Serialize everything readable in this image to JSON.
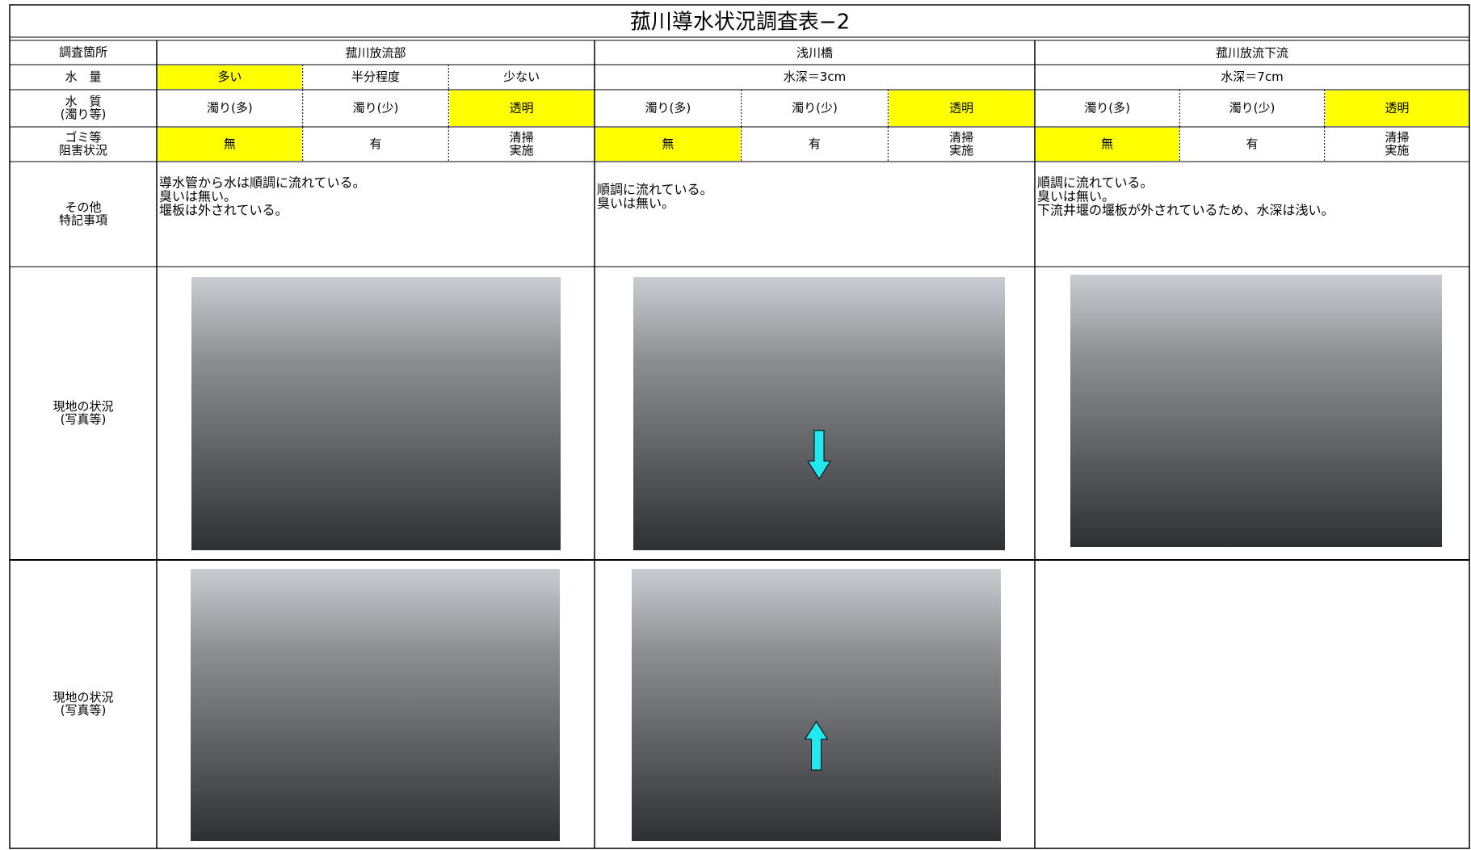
{
  "title": "菰川導水状況調査表−2",
  "highlight_color": "#ffff00",
  "row_labels": {
    "location": [
      "調査箇所"
    ],
    "water_amount": [
      "水　量"
    ],
    "water_quality": [
      "水　質",
      "(濁り等)"
    ],
    "obstruction": [
      "ゴミ等",
      "阻害状況"
    ],
    "notes": [
      "その他",
      "特記事項"
    ],
    "photos": [
      [
        "現地の状況",
        "(写真等)"
      ],
      [
        "現地の状況",
        "(写真等)"
      ]
    ]
  },
  "sites": [
    {
      "name": "菰川放流部",
      "water_amount": [
        {
          "text": [
            "多い"
          ],
          "highlight": true
        },
        {
          "text": [
            "半分程度"
          ]
        },
        {
          "text": [
            "少ない"
          ]
        }
      ],
      "water_quality": [
        {
          "text": [
            "濁り(多)"
          ]
        },
        {
          "text": [
            "濁り(少)"
          ]
        },
        {
          "text": [
            "透明"
          ],
          "highlight": true
        }
      ],
      "obstruction": [
        {
          "text": [
            "無"
          ],
          "highlight": true
        },
        {
          "text": [
            "有"
          ]
        },
        {
          "text": [
            "清掃",
            "実施"
          ]
        }
      ],
      "notes": [
        "導水管から水は順調に流れている。",
        "臭いは無い。",
        "堰板は外されている。"
      ]
    },
    {
      "name": "浅川橋",
      "water_amount": [
        {
          "text": [
            "水深＝3cm"
          ]
        }
      ],
      "water_quality": [
        {
          "text": [
            "濁り(多)"
          ]
        },
        {
          "text": [
            "濁り(少)"
          ]
        },
        {
          "text": [
            "透明"
          ],
          "highlight": true
        }
      ],
      "obstruction": [
        {
          "text": [
            "無"
          ],
          "highlight": true
        },
        {
          "text": [
            "有"
          ]
        },
        {
          "text": [
            "清掃",
            "実施"
          ]
        }
      ],
      "notes": [
        "順調に流れている。",
        "臭いは無い。"
      ]
    },
    {
      "name": "菰川放流下流",
      "water_amount": [
        {
          "text": [
            "水深＝7cm"
          ]
        }
      ],
      "water_quality": [
        {
          "text": [
            "濁り(多)"
          ]
        },
        {
          "text": [
            "濁り(少)"
          ]
        },
        {
          "text": [
            "透明"
          ],
          "highlight": true
        }
      ],
      "obstruction": [
        {
          "text": [
            "無"
          ],
          "highlight": true
        },
        {
          "text": [
            "有"
          ]
        },
        {
          "text": [
            "清掃",
            "実施"
          ]
        }
      ],
      "notes": [
        "順調に流れている。",
        "臭いは無い。",
        "下流井堰の堰板が外されているため、水深は浅い。"
      ]
    }
  ]
}
